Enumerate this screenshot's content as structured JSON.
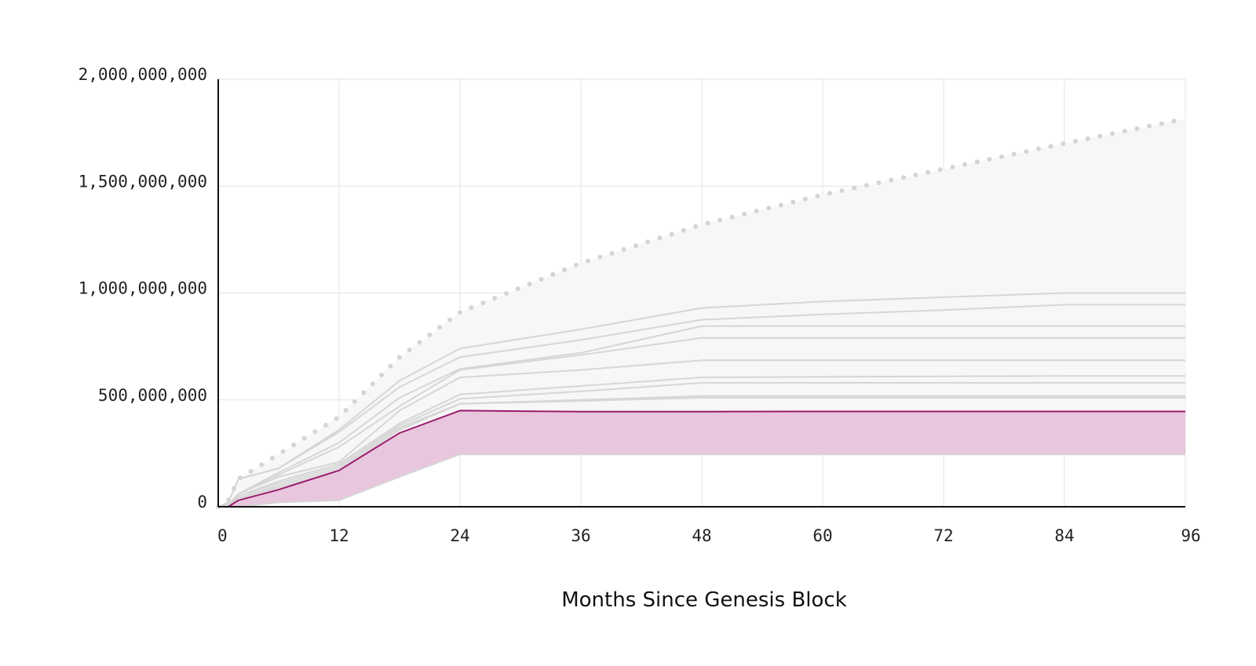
{
  "chart_data": {
    "type": "area",
    "title": "",
    "xlabel": "Months Since Genesis Block",
    "ylabel": "",
    "xlim": [
      0,
      96
    ],
    "ylim": [
      0,
      2000000000
    ],
    "x_ticks": [
      0,
      12,
      24,
      36,
      48,
      60,
      72,
      84,
      96
    ],
    "x_tick_labels": [
      "0",
      "12",
      "24",
      "36",
      "48",
      "60",
      "72",
      "84",
      "96"
    ],
    "y_ticks": [
      0,
      500000000,
      1000000000,
      1500000000,
      2000000000
    ],
    "y_tick_labels": [
      "0",
      "500,000,000",
      "1,000,000,000",
      "1,500,000,000",
      "2,000,000,000"
    ],
    "grid": true,
    "legend": "none",
    "colors": {
      "highlight_line": "#9b1b6e",
      "highlight_fill": "#e8c6dd",
      "envelope_fill": "#f7f7f7",
      "other_lines": "#d6d6d6",
      "max_supply_dots": "#d4d4d4",
      "grid": "#e3e3e3",
      "axis": "#111111"
    },
    "max_supply": {
      "style": "dotted",
      "x": [
        0,
        1,
        2,
        12,
        18,
        24,
        36,
        48,
        60,
        72,
        84,
        96
      ],
      "y": [
        0,
        30000000,
        130000000,
        420000000,
        700000000,
        910000000,
        1140000000,
        1320000000,
        1460000000,
        1580000000,
        1700000000,
        1815000000
      ]
    },
    "lower_bound": {
      "x": [
        0,
        1,
        2,
        6,
        12,
        18,
        24,
        36,
        48,
        60,
        72,
        84,
        96
      ],
      "y": [
        0,
        0,
        0,
        20000000,
        30000000,
        140000000,
        245000000,
        245000000,
        245000000,
        245000000,
        245000000,
        245000000,
        245000000
      ]
    },
    "highlight_series": {
      "x": [
        0,
        1,
        2,
        6,
        12,
        18,
        24,
        36,
        48,
        60,
        72,
        84,
        96
      ],
      "y": [
        0,
        0,
        30000000,
        80000000,
        170000000,
        345000000,
        450000000,
        445000000,
        445000000,
        446000000,
        446000000,
        446000000,
        446000000
      ]
    },
    "series": [
      {
        "x": [
          0,
          1,
          2,
          6,
          12,
          18,
          24,
          36,
          48,
          60,
          72,
          84,
          96
        ],
        "y": [
          0,
          20000000,
          130000000,
          180000000,
          360000000,
          590000000,
          740000000,
          830000000,
          930000000,
          960000000,
          980000000,
          1000000000,
          1000000000
        ]
      },
      {
        "x": [
          0,
          1,
          2,
          6,
          12,
          18,
          24,
          36,
          48,
          60,
          72,
          84,
          96
        ],
        "y": [
          0,
          20000000,
          130000000,
          180000000,
          350000000,
          560000000,
          700000000,
          780000000,
          875000000,
          900000000,
          920000000,
          945000000,
          945000000
        ]
      },
      {
        "x": [
          0,
          1,
          2,
          6,
          12,
          18,
          24,
          36,
          48,
          60,
          72,
          84,
          96
        ],
        "y": [
          0,
          10000000,
          60000000,
          160000000,
          300000000,
          510000000,
          645000000,
          720000000,
          845000000,
          845000000,
          845000000,
          845000000,
          845000000
        ]
      },
      {
        "x": [
          0,
          1,
          2,
          6,
          12,
          18,
          24,
          36,
          48,
          60,
          72,
          84,
          96
        ],
        "y": [
          0,
          10000000,
          60000000,
          150000000,
          280000000,
          470000000,
          640000000,
          710000000,
          790000000,
          790000000,
          790000000,
          790000000,
          790000000
        ]
      },
      {
        "x": [
          0,
          1,
          2,
          6,
          12,
          18,
          24,
          36,
          48,
          60,
          72,
          84,
          96
        ],
        "y": [
          0,
          10000000,
          60000000,
          140000000,
          210000000,
          450000000,
          605000000,
          640000000,
          685000000,
          685000000,
          685000000,
          685000000,
          685000000
        ]
      },
      {
        "x": [
          0,
          1,
          2,
          6,
          12,
          18,
          24,
          36,
          48,
          60,
          72,
          84,
          96
        ],
        "y": [
          0,
          10000000,
          50000000,
          120000000,
          200000000,
          390000000,
          525000000,
          565000000,
          605000000,
          608000000,
          610000000,
          612000000,
          612000000
        ]
      },
      {
        "x": [
          0,
          1,
          2,
          6,
          12,
          18,
          24,
          36,
          48,
          60,
          72,
          84,
          96
        ],
        "y": [
          0,
          10000000,
          50000000,
          110000000,
          190000000,
          380000000,
          505000000,
          540000000,
          580000000,
          580000000,
          580000000,
          580000000,
          580000000
        ]
      },
      {
        "x": [
          0,
          1,
          2,
          6,
          12,
          18,
          24,
          36,
          48,
          60,
          72,
          84,
          96
        ],
        "y": [
          0,
          5000000,
          40000000,
          100000000,
          180000000,
          370000000,
          482000000,
          500000000,
          518000000,
          518000000,
          518000000,
          518000000,
          518000000
        ]
      },
      {
        "x": [
          0,
          1,
          2,
          6,
          12,
          18,
          24,
          36,
          48,
          60,
          72,
          84,
          96
        ],
        "y": [
          0,
          5000000,
          40000000,
          90000000,
          170000000,
          360000000,
          482000000,
          495000000,
          510000000,
          510000000,
          510000000,
          510000000,
          510000000
        ]
      }
    ]
  }
}
